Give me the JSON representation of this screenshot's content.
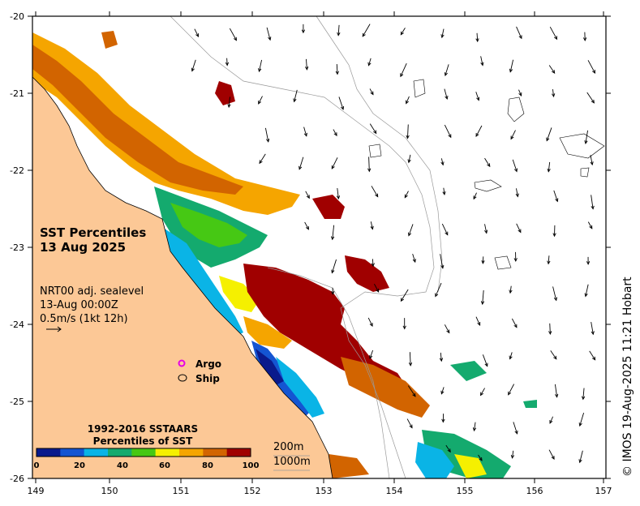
{
  "map": {
    "lon_range": [
      149,
      157
    ],
    "lat_range": [
      -26,
      -20
    ],
    "x_ticks": [
      "149",
      "150",
      "151",
      "152",
      "153",
      "154",
      "155",
      "156",
      "157"
    ],
    "y_ticks": [
      "-20",
      "-21",
      "-22",
      "-23",
      "-24",
      "-25",
      "-26"
    ]
  },
  "title": {
    "line1": "SST Percentiles",
    "line2": "13 Aug 2025"
  },
  "info": {
    "line1": "NRT00 adj. sealevel",
    "line2": "13-Aug 00:00Z",
    "line3": "0.5m/s (1kt 12h)"
  },
  "legend": {
    "argo": "Argo",
    "ship": "Ship"
  },
  "colorbar": {
    "title1": "1992-2016 SSTAARS",
    "title2": "Percentiles of SST",
    "ticks": [
      "0",
      "20",
      "40",
      "60",
      "80",
      "100"
    ],
    "colors": [
      "#0a1a8c",
      "#1455d2",
      "#0ab4e6",
      "#14aa6e",
      "#46c814",
      "#f5f000",
      "#f5a500",
      "#d26400",
      "#a00000"
    ]
  },
  "depth": {
    "label1": "200m",
    "label2": "1000m"
  },
  "credit": "© IMOS 19-Aug-2025 11:21 Hobart",
  "colors": {
    "land": "#fcc896",
    "ocean": "#ffffff",
    "argo": "#e600e6"
  }
}
